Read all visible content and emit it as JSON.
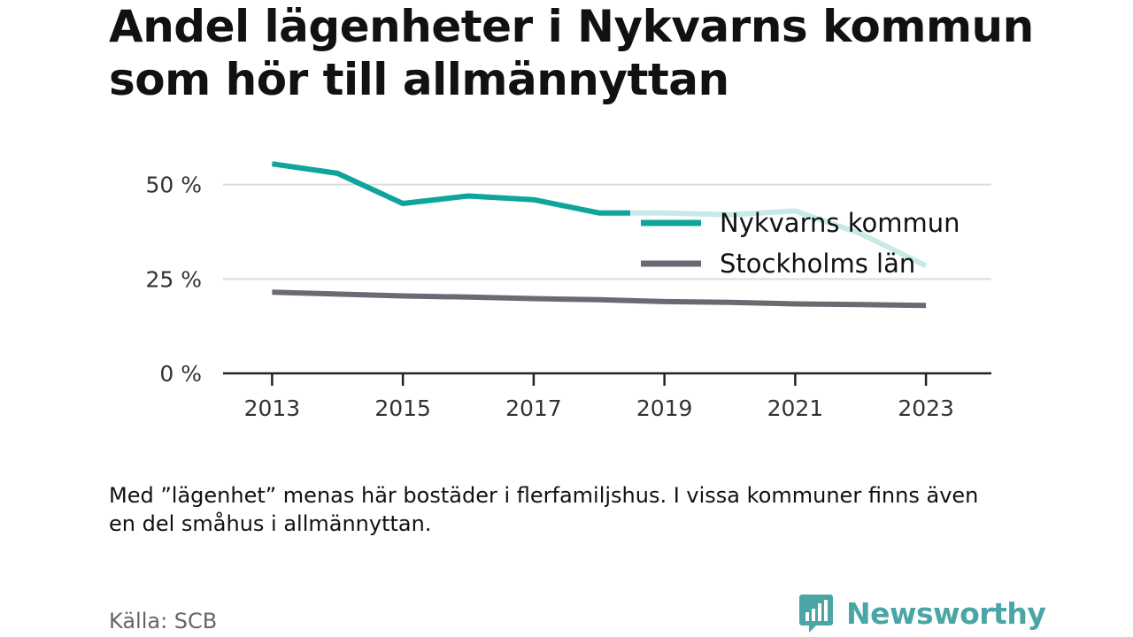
{
  "title": "Andel lägenheter i Nykvarns kommun som hör till allmännyttan",
  "note": "Med ”lägenhet” menas här bostäder i flerfamiljshus. I vissa kommuner finns även en del småhus i allmännyttan.",
  "source": "Källa: SCB",
  "brand": {
    "name": "Newsworthy",
    "icon": "newsworthy-logo-icon",
    "color": "#4aa6a4"
  },
  "chart_data": {
    "type": "line",
    "title": "Andel lägenheter i Nykvarns kommun som hör till allmännyttan",
    "x": [
      2013,
      2014,
      2015,
      2016,
      2017,
      2018,
      2019,
      2020,
      2021,
      2022,
      2023
    ],
    "xticks": [
      2013,
      2015,
      2017,
      2019,
      2021,
      2023
    ],
    "xtick_labels": [
      "2013",
      "2015",
      "2017",
      "2019",
      "2021",
      "2023"
    ],
    "yticks": [
      0,
      25,
      50
    ],
    "ytick_labels": [
      "0 %",
      "25 %",
      "50 %"
    ],
    "ylim": [
      0,
      60
    ],
    "xlim": [
      2012.25,
      2024.0
    ],
    "grid": "horizontal",
    "legend_position": "top-right",
    "series": [
      {
        "name": "Nykvarns kommun",
        "color": "#0fa59c",
        "faded_color": "#c7eae7",
        "values": [
          55.5,
          53.0,
          45.0,
          47.0,
          46.0,
          42.5,
          42.5,
          42.0,
          43.0,
          37.0,
          28.5
        ]
      },
      {
        "name": "Stockholms län",
        "color": "#6b6a73",
        "values": [
          21.5,
          21.0,
          20.5,
          20.2,
          19.8,
          19.5,
          19.0,
          18.8,
          18.4,
          18.2,
          18.0
        ]
      }
    ]
  }
}
